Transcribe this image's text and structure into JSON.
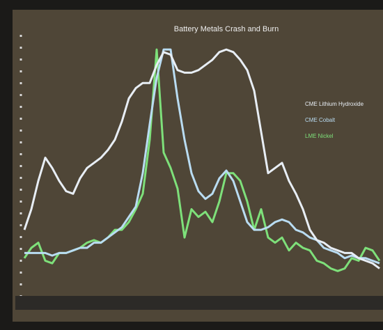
{
  "chart_data": {
    "type": "line",
    "title": "Battery Metals Crash and Burn",
    "ylim": [
      0,
      100
    ],
    "series": [
      {
        "name": "CME Lithium Hydroxide",
        "color": "#e8eef5",
        "values": [
          27,
          35,
          46,
          55,
          51,
          46,
          42,
          41,
          47,
          51,
          53,
          55,
          58,
          62,
          69,
          78,
          82,
          84,
          84,
          91,
          96,
          95,
          89,
          88,
          88,
          89,
          91,
          93,
          96,
          97,
          96,
          93,
          89,
          81,
          65,
          49,
          51,
          53,
          46,
          41,
          35,
          27,
          23,
          22,
          20,
          19,
          18,
          18,
          16,
          15,
          14,
          12
        ]
      },
      {
        "name": "CME Cobalt",
        "color": "#b9dcf2",
        "values": [
          18,
          18,
          18,
          18,
          17,
          18,
          18,
          19,
          20,
          20,
          22,
          22,
          24,
          26,
          28,
          32,
          36,
          49,
          68,
          86,
          97,
          97,
          78,
          62,
          49,
          42,
          39,
          41,
          47,
          50,
          46,
          38,
          30,
          27,
          27,
          28,
          30,
          31,
          30,
          27,
          26,
          24,
          23,
          20,
          19,
          18,
          16,
          17,
          16,
          16,
          15,
          14
        ]
      },
      {
        "name": "LME Nickel",
        "color": "#7ee07a",
        "values": [
          16,
          20,
          22,
          15,
          14,
          18,
          18,
          19,
          20,
          22,
          23,
          22,
          24,
          27,
          27,
          30,
          35,
          41,
          62,
          97,
          57,
          51,
          43,
          24,
          35,
          32,
          34,
          30,
          38,
          49,
          49,
          46,
          38,
          27,
          35,
          24,
          22,
          24,
          19,
          22,
          20,
          19,
          15,
          14,
          12,
          11,
          12,
          16,
          15,
          20,
          19,
          15
        ]
      }
    ],
    "legend": "right"
  }
}
